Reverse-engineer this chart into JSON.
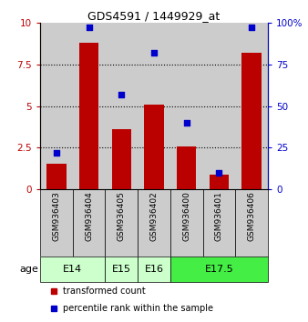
{
  "title": "GDS4591 / 1449929_at",
  "samples": [
    "GSM936403",
    "GSM936404",
    "GSM936405",
    "GSM936402",
    "GSM936400",
    "GSM936401",
    "GSM936406"
  ],
  "transformed_count": [
    1.55,
    8.8,
    3.6,
    5.1,
    2.6,
    0.9,
    8.2
  ],
  "percentile_rank": [
    22,
    97,
    57,
    82,
    40,
    10,
    97
  ],
  "bar_color": "#bb0000",
  "dot_color": "#0000cc",
  "ylim_left": [
    0,
    10
  ],
  "ylim_right": [
    0,
    100
  ],
  "yticks_left": [
    0,
    2.5,
    5,
    7.5,
    10
  ],
  "yticks_right": [
    0,
    25,
    50,
    75,
    100
  ],
  "ytick_right_labels": [
    "0",
    "25",
    "50",
    "75",
    "100%"
  ],
  "age_groups": [
    {
      "label": "E14",
      "start": 0,
      "end": 1,
      "color": "#ccffcc"
    },
    {
      "label": "E15",
      "start": 2,
      "end": 2,
      "color": "#ccffcc"
    },
    {
      "label": "E16",
      "start": 3,
      "end": 3,
      "color": "#ccffcc"
    },
    {
      "label": "E17.5",
      "start": 4,
      "end": 6,
      "color": "#44dd44"
    }
  ],
  "sample_bg_color": "#cccccc",
  "legend_bar_label": "transformed count",
  "legend_dot_label": "percentile rank within the sample",
  "grid_lines": [
    2.5,
    5.0,
    7.5
  ]
}
